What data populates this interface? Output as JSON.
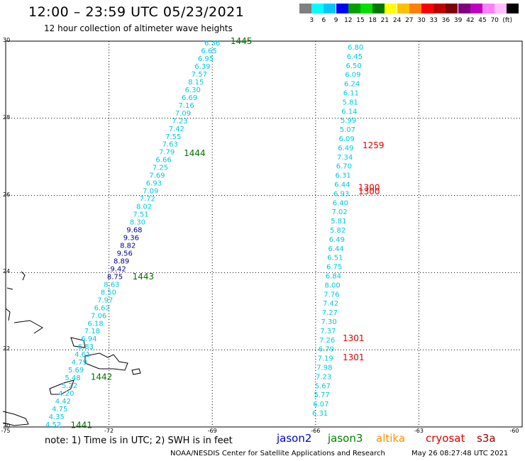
{
  "title": "12:00 – 23:59 UTC 05/23/2021",
  "subtitle": "12 hour collection of altimeter wave heights",
  "colorbar": {
    "unit": "(ft)",
    "swatches": [
      "#808080",
      "#00ffff",
      "#00c8ff",
      "#0000ff",
      "#00a000",
      "#00e000",
      "#007800",
      "#ffff00",
      "#ffc000",
      "#ff8000",
      "#ff0000",
      "#c00000",
      "#800000",
      "#800080",
      "#c000c0",
      "#ff80ff",
      "#ffc0ff",
      "#000000"
    ],
    "labels": [
      "3",
      "6",
      "9",
      "12",
      "15",
      "18",
      "21",
      "24",
      "27",
      "30",
      "33",
      "36",
      "39",
      "42",
      "45",
      "70"
    ]
  },
  "axes": {
    "lat_labels": [
      "30",
      "28",
      "26",
      "24",
      "22",
      "20"
    ],
    "lon_labels": [
      "-75",
      "-72",
      "-69",
      "-66",
      "-63",
      "-60"
    ],
    "lat_range": [
      20,
      30
    ],
    "lon_range": [
      -75,
      -60
    ]
  },
  "colors": {
    "swh_low": "#00c8e0",
    "swh_mid": "#000090",
    "jason3_time": "#007000",
    "cryosat_time": "#e00000"
  },
  "tracks": {
    "west": {
      "values": [
        "6.36",
        "6.65",
        "6.95",
        "6.39",
        "7.57",
        "8.15",
        "6.30",
        "6.69",
        "7.16",
        "7.09",
        "7.23",
        "7.42",
        "7.55",
        "7.63",
        "7.79",
        "6.66",
        "7.25",
        "7.69",
        "6.93",
        "7.09",
        "7.72",
        "8.02",
        "7.51",
        "8.30",
        "9.68",
        "9.36",
        "8.82",
        "9.56",
        "8.89",
        "9.42",
        "8.75",
        "8.63",
        "8.50",
        "7.97",
        "6.62",
        "7.06",
        "6.18",
        "7.18",
        "6.94",
        "6.83",
        "4.61",
        "4.79",
        "5.69",
        "5.48",
        "5.22",
        "4.20",
        "4.42",
        "4.75",
        "4.35",
        "4.52"
      ],
      "times": [
        "1445",
        "1444",
        "1443",
        "1442",
        "1441"
      ],
      "time_lats": [
        30.0,
        27.1,
        23.9,
        21.3,
        20.05
      ]
    },
    "east": {
      "values": [
        "6.80",
        "6.45",
        "6.50",
        "6.09",
        "6.24",
        "6.11",
        "5.81",
        "6.14",
        "5.99",
        "5.07",
        "6.09",
        "6.49",
        "7.34",
        "6.70",
        "6.31",
        "6.44",
        "6.93",
        "6.40",
        "7.02",
        "5.81",
        "5.82",
        "6.49",
        "6.44",
        "6.51",
        "6.75",
        "6.84",
        "8.00",
        "7.76",
        "7.42",
        "7.27",
        "7.30",
        "7.37",
        "7.26",
        "6.79",
        "7.19",
        "7.98",
        "7.23",
        "5.67",
        "5.77",
        "6.07",
        "6.31"
      ],
      "times": [
        "1259",
        "1300",
        "1300",
        "1301",
        "1301"
      ],
      "time_lats": [
        27.3,
        26.2,
        26.1,
        22.3,
        21.8
      ]
    }
  },
  "footer": {
    "note": "note: 1) Time is in UTC; 2) SWH is in feet",
    "satellites": [
      {
        "name": "jason2",
        "color": "#0000d0"
      },
      {
        "name": "jason3",
        "color": "#008000"
      },
      {
        "name": "altika",
        "color": "#ff9000"
      },
      {
        "name": "cryosat",
        "color": "#e00000"
      },
      {
        "name": "s3a",
        "color": "#a00000"
      }
    ],
    "credit": "NOAA/NESDIS Center for Satellite Applications and Research",
    "timestamp": "May 26 08:27:48 UTC 2021"
  }
}
